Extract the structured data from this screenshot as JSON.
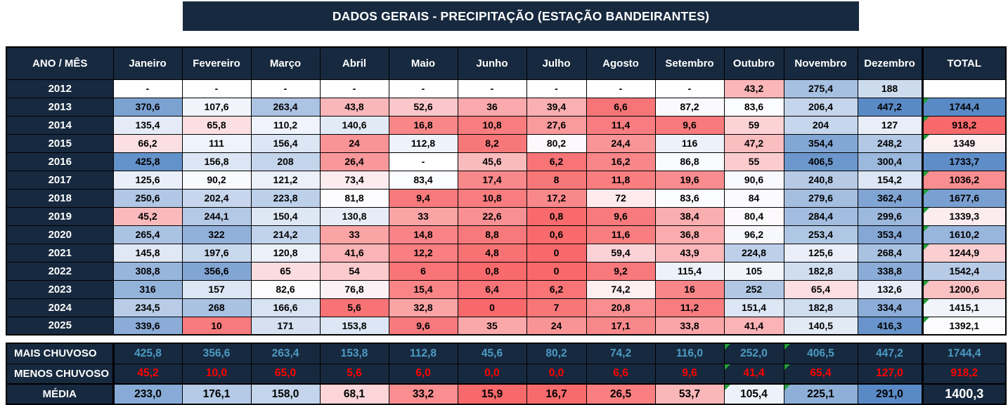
{
  "title": "DADOS GERAIS - PRECIPITAÇÃO (ESTAÇÃO BANDEIRANTES)",
  "colors": {
    "navy": "#17293F",
    "scale_min": "#F8696B",
    "scale_mid": "#FCFCFF",
    "scale_max": "#5A8AC6",
    "mais_text": "#4C9BC4",
    "menos_text": "#FF0000",
    "triangle": "#21A038",
    "header_text": "#FFFFFF"
  },
  "table": {
    "corner_label": "ANO / MÊS",
    "total_label": "TOTAL",
    "columns": [
      "Janeiro",
      "Fevereiro",
      "Março",
      "Abril",
      "Maio",
      "Junho",
      "Julho",
      "Agosto",
      "Setembro",
      "Outubro",
      "Novembro",
      "Dezembro"
    ],
    "rows": [
      {
        "year": "2012",
        "values": [
          "-",
          "-",
          "-",
          "-",
          "-",
          "-",
          "-",
          "-",
          "-",
          "43,2",
          "275,4",
          "188"
        ],
        "total": "",
        "total_flag": false
      },
      {
        "year": "2013",
        "values": [
          "370,6",
          "107,6",
          "263,4",
          "43,8",
          "52,6",
          "36",
          "39,4",
          "6,6",
          "87,2",
          "83,6",
          "206,4",
          "447,2"
        ],
        "total": "1744,4",
        "total_flag": true
      },
      {
        "year": "2014",
        "values": [
          "135,4",
          "65,8",
          "110,2",
          "140,6",
          "16,8",
          "10,8",
          "27,6",
          "11,4",
          "9,6",
          "59",
          "204",
          "127"
        ],
        "total": "918,2",
        "total_flag": true
      },
      {
        "year": "2015",
        "values": [
          "66,2",
          "111",
          "156,4",
          "24",
          "112,8",
          "8,2",
          "80,2",
          "24,4",
          "116",
          "47,2",
          "354,4",
          "248,2"
        ],
        "total": "1349",
        "total_flag": true
      },
      {
        "year": "2016",
        "values": [
          "425,8",
          "156,8",
          "208",
          "26,4",
          "-",
          "45,6",
          "6,2",
          "16,2",
          "86,8",
          "55",
          "406,5",
          "300,4"
        ],
        "total": "1733,7",
        "total_flag": false
      },
      {
        "year": "2017",
        "values": [
          "125,6",
          "90,2",
          "121,2",
          "73,4",
          "83,4",
          "17,4",
          "8",
          "11,8",
          "19,6",
          "90,6",
          "240,8",
          "154,2"
        ],
        "total": "1036,2",
        "total_flag": true
      },
      {
        "year": "2018",
        "values": [
          "250,6",
          "202,4",
          "223,8",
          "81,8",
          "9,4",
          "10,8",
          "17,2",
          "72",
          "83,6",
          "84",
          "279,6",
          "362,4"
        ],
        "total": "1677,6",
        "total_flag": true
      },
      {
        "year": "2019",
        "values": [
          "45,2",
          "244,1",
          "150,4",
          "130,8",
          "33",
          "22,6",
          "0,8",
          "9,6",
          "38,4",
          "80,4",
          "284,4",
          "299,6"
        ],
        "total": "1339,3",
        "total_flag": true
      },
      {
        "year": "2020",
        "values": [
          "265,4",
          "322",
          "214,2",
          "33",
          "14,8",
          "8,8",
          "0,6",
          "11,6",
          "36,8",
          "96,2",
          "253,4",
          "353,4"
        ],
        "total": "1610,2",
        "total_flag": true
      },
      {
        "year": "2021",
        "values": [
          "145,8",
          "197,6",
          "120,8",
          "41,6",
          "12,2",
          "4,8",
          "0",
          "59,4",
          "43,9",
          "224,8",
          "125,6",
          "268,4"
        ],
        "total": "1244,9",
        "total_flag": true
      },
      {
        "year": "2022",
        "values": [
          "308,8",
          "356,6",
          "65",
          "54",
          "6",
          "0,8",
          "0",
          "9,2",
          "115,4",
          "105",
          "182,8",
          "338,8"
        ],
        "total": "1542,4",
        "total_flag": false
      },
      {
        "year": "2023",
        "values": [
          "316",
          "157",
          "82,6",
          "76,8",
          "15,4",
          "6,4",
          "6,2",
          "74,2",
          "16",
          "252",
          "65,4",
          "132,6"
        ],
        "total": "1200,6",
        "total_flag": true
      },
      {
        "year": "2024",
        "values": [
          "234,5",
          "268",
          "166,6",
          "5,6",
          "32,8",
          "0",
          "7",
          "20,8",
          "11,2",
          "151,4",
          "182,8",
          "334,4"
        ],
        "total": "1415,1",
        "total_flag": true
      },
      {
        "year": "2025",
        "values": [
          "339,6",
          "10",
          "171",
          "153,8",
          "9,6",
          "35",
          "24",
          "17,1",
          "33,8",
          "41,4",
          "140,5",
          "416,3"
        ],
        "total": "1392,1",
        "total_flag": true
      }
    ],
    "summary": [
      {
        "label": "MAIS CHUVOSO",
        "kind": "mais",
        "values": [
          "425,8",
          "356,6",
          "263,4",
          "153,8",
          "112,8",
          "45,6",
          "80,2",
          "74,2",
          "116,0",
          "252,0",
          "406,5",
          "447,2"
        ],
        "total": "1744,4",
        "flag_cols": [
          9,
          10
        ]
      },
      {
        "label": "MENOS CHUVOSO",
        "kind": "menos",
        "values": [
          "45,2",
          "10,0",
          "65,0",
          "5,6",
          "6,0",
          "0,0",
          "0,0",
          "6,6",
          "9,6",
          "41,4",
          "65,4",
          "127,0"
        ],
        "total": "918,2",
        "flag_cols": [
          9,
          10
        ]
      },
      {
        "label": "MÉDIA",
        "kind": "media",
        "values": [
          "233,0",
          "176,1",
          "158,0",
          "68,1",
          "33,2",
          "15,9",
          "16,7",
          "26,5",
          "53,7",
          "105,4",
          "225,1",
          "291,0"
        ],
        "total": "1400,3",
        "flag_cols": [
          9,
          10
        ]
      }
    ]
  }
}
